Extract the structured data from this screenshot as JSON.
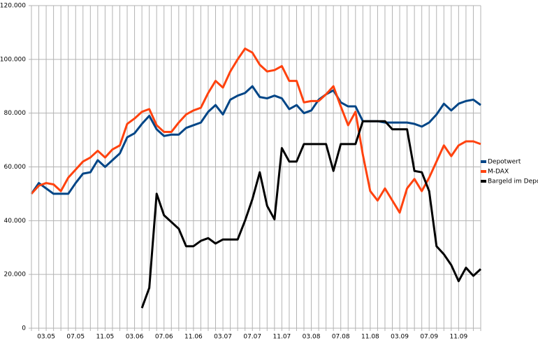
{
  "chart_data": {
    "type": "line",
    "categories": [
      null,
      null,
      "03.05",
      null,
      null,
      null,
      "07.05",
      null,
      null,
      null,
      "11.05",
      null,
      null,
      null,
      "03.06",
      null,
      null,
      null,
      "07.06",
      null,
      null,
      null,
      "11.06",
      null,
      null,
      null,
      "03.07",
      null,
      null,
      null,
      "07.07",
      null,
      null,
      null,
      "11.07",
      null,
      null,
      null,
      "03.08",
      null,
      null,
      null,
      "07.08",
      null,
      null,
      null,
      "11.08",
      null,
      null,
      null,
      "03.09",
      null,
      null,
      null,
      "07.09",
      null,
      null,
      null,
      "11.09",
      null,
      null,
      null
    ],
    "series": [
      {
        "name": "Depotwert",
        "color": "#004586",
        "values": [
          50000,
          54000,
          52000,
          50000,
          50000,
          50000,
          54000,
          57500,
          58000,
          62500,
          60000,
          62500,
          65000,
          71000,
          72500,
          76000,
          79000,
          74000,
          71500,
          72000,
          72000,
          74500,
          75500,
          76500,
          80500,
          83000,
          79500,
          85000,
          86500,
          87500,
          90000,
          86000,
          85500,
          86500,
          85500,
          81500,
          83000,
          80000,
          81000,
          85000,
          87000,
          88500,
          84000,
          82500,
          82500,
          77000,
          77000,
          77000,
          76500,
          76500,
          76500,
          76500,
          76000,
          75000,
          76500,
          79500,
          83500,
          81000,
          83500,
          84500,
          85000,
          83000
        ]
      },
      {
        "name": "M-DAX",
        "color": "#ff420e",
        "values": [
          50000,
          53000,
          54000,
          53500,
          51000,
          56000,
          59000,
          62000,
          63500,
          66000,
          63500,
          66500,
          68000,
          76000,
          78000,
          80500,
          81500,
          75500,
          73000,
          73000,
          76500,
          79500,
          81000,
          82000,
          87500,
          92000,
          89500,
          95500,
          100000,
          104000,
          102500,
          98000,
          95500,
          96000,
          97500,
          92000,
          92000,
          84000,
          84500,
          84500,
          87000,
          90000,
          82500,
          75500,
          80500,
          64500,
          51000,
          47500,
          52000,
          47500,
          43000,
          52000,
          55500,
          51000,
          56000,
          62000,
          68000,
          64000,
          68000,
          69500,
          69500,
          68500
        ]
      },
      {
        "name": "Bargeld im Depot",
        "color": "#000000",
        "values": [
          null,
          null,
          null,
          null,
          null,
          null,
          null,
          null,
          null,
          null,
          null,
          null,
          null,
          null,
          null,
          7500,
          15000,
          50000,
          42000,
          39500,
          37000,
          30500,
          30500,
          32500,
          33500,
          31500,
          33000,
          33000,
          33000,
          40000,
          48000,
          58000,
          45500,
          40500,
          67000,
          62000,
          62000,
          68500,
          68500,
          68500,
          68500,
          58500,
          68500,
          68500,
          68500,
          77000,
          77000,
          77000,
          77000,
          74000,
          74000,
          74000,
          58500,
          58000,
          51000,
          30500,
          27500,
          23500,
          17500,
          22500,
          19500,
          22000
        ]
      }
    ],
    "ylim": [
      0,
      120000
    ],
    "yticks": [
      0,
      {
        "value": 20000,
        "label": "20.000"
      },
      {
        "value": 40000,
        "label": "40.000"
      },
      {
        "value": 60000,
        "label": "60.000"
      },
      {
        "value": 80000,
        "label": "80.000"
      },
      {
        "value": 100000,
        "label": "100.000"
      },
      {
        "value": 120000,
        "label": "120.000"
      }
    ],
    "grid": true,
    "legend": "right"
  }
}
